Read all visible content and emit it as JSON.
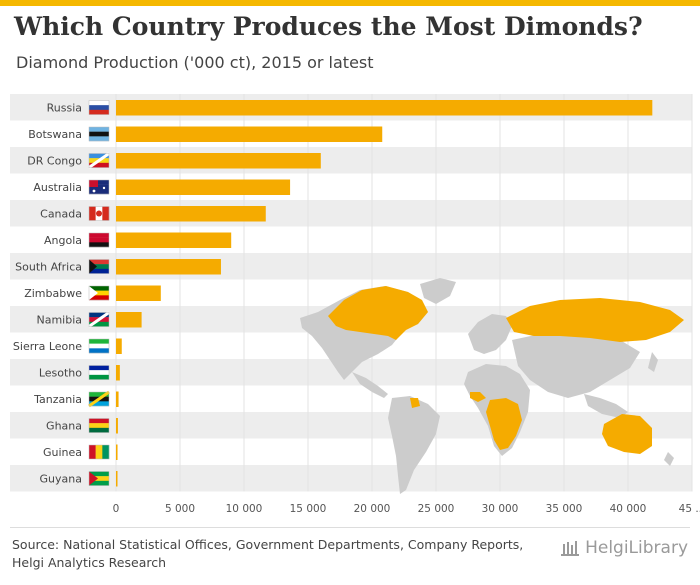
{
  "header": {
    "title": "Which Country Produces the Most Dimonds?",
    "subtitle": "Diamond Production ('000 ct), 2015 or latest"
  },
  "footer": {
    "source_line1": "Source: National Statistical Offices, Government Departments, Company Reports,",
    "source_line2": "Helgi Analytics Research",
    "brand": "HelgiLibrary"
  },
  "colors": {
    "bar": "#f5ab00",
    "map_land": "#cccccc",
    "map_highlight": "#f5ab00",
    "stripe": "#ededed",
    "accent": "#f5b800"
  },
  "chart_data": {
    "type": "bar",
    "orientation": "horizontal",
    "categories": [
      "Russia",
      "Botswana",
      "DR Congo",
      "Australia",
      "Canada",
      "Angola",
      "South Africa",
      "Zimbabwe",
      "Namibia",
      "Sierra Leone",
      "Lesotho",
      "Tanzania",
      "Ghana",
      "Guinea",
      "Guyana"
    ],
    "values": [
      41900,
      20800,
      16000,
      13600,
      11700,
      9000,
      8200,
      3500,
      2000,
      450,
      300,
      200,
      150,
      120,
      100
    ],
    "flags": [
      "russia-flag-icon",
      "botswana-flag-icon",
      "dr-congo-flag-icon",
      "australia-flag-icon",
      "canada-flag-icon",
      "angola-flag-icon",
      "south-africa-flag-icon",
      "zimbabwe-flag-icon",
      "namibia-flag-icon",
      "sierra-leone-flag-icon",
      "lesotho-flag-icon",
      "tanzania-flag-icon",
      "ghana-flag-icon",
      "guinea-flag-icon",
      "guyana-flag-icon"
    ],
    "xticks": [
      "0",
      "5 000",
      "10 000",
      "15 000",
      "20 000",
      "25 000",
      "30 000",
      "35 000",
      "40 000",
      "45 ..."
    ],
    "xlim": [
      0,
      45000
    ],
    "grid": true,
    "legend": "none"
  }
}
